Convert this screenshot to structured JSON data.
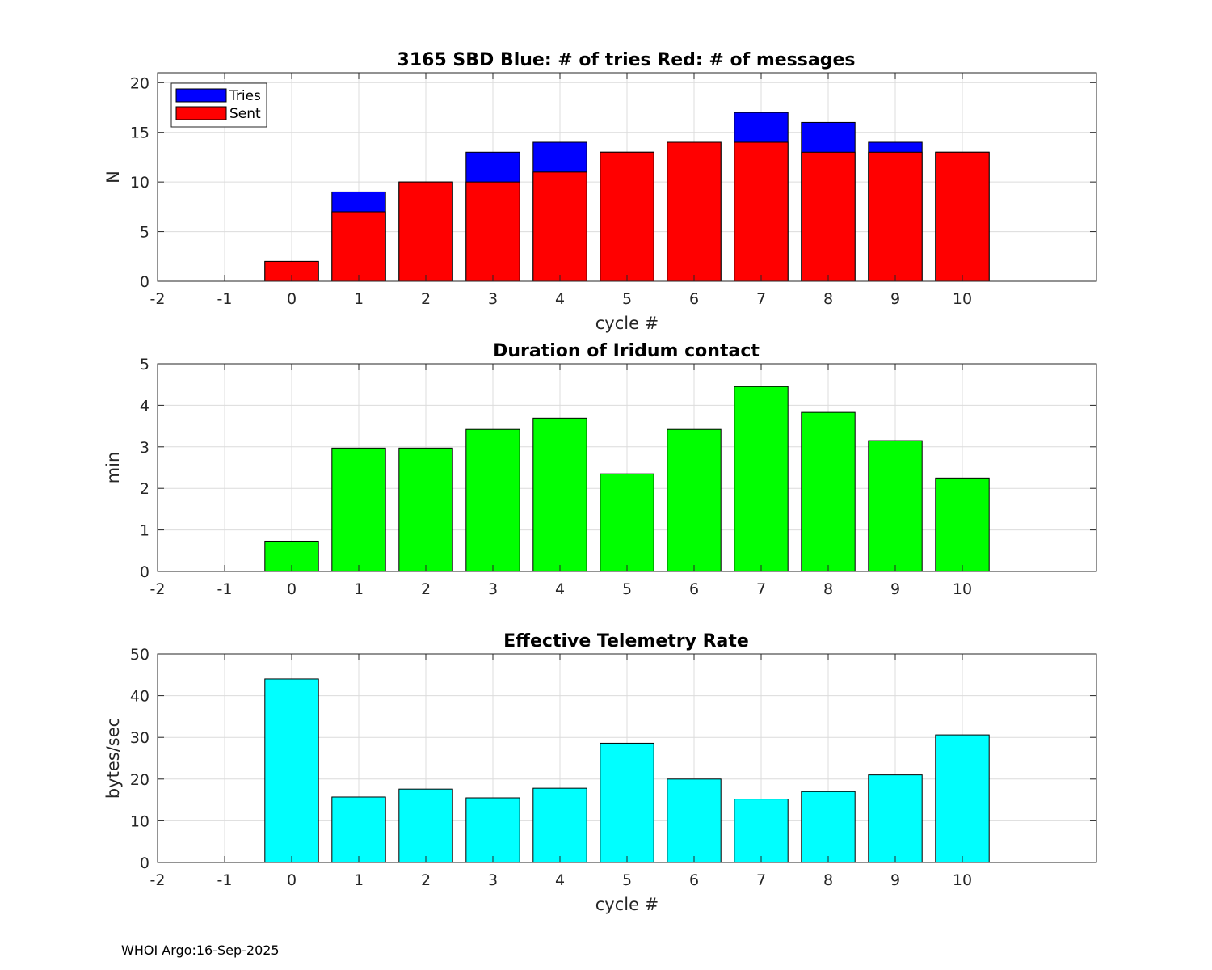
{
  "chart_data": [
    {
      "type": "bar",
      "title": "3165 SBD  Blue: # of tries   Red: # of messages",
      "xlabel": "cycle #",
      "ylabel": "N",
      "xlim": [
        -2,
        12
      ],
      "ylim": [
        0,
        21
      ],
      "yticks": [
        0,
        5,
        10,
        15,
        20
      ],
      "xticks": [
        -2,
        -1,
        0,
        1,
        2,
        3,
        4,
        5,
        6,
        7,
        8,
        9,
        10
      ],
      "grid": true,
      "legend": {
        "placement": "top-left",
        "entries": [
          "Tries",
          "Sent"
        ]
      },
      "categories": [
        0,
        1,
        2,
        3,
        4,
        5,
        6,
        7,
        8,
        9,
        10
      ],
      "series": [
        {
          "name": "Tries",
          "color": "#0000ff",
          "values": [
            2,
            9,
            10,
            13,
            14,
            13,
            14,
            17,
            16,
            14,
            13
          ]
        },
        {
          "name": "Sent",
          "color": "#ff0000",
          "values": [
            2,
            7,
            10,
            10,
            11,
            13,
            14,
            14,
            13,
            13,
            13
          ]
        }
      ]
    },
    {
      "type": "bar",
      "title": "Duration of Iridum contact",
      "xlabel": "",
      "ylabel": "min",
      "xlim": [
        -2,
        12
      ],
      "ylim": [
        0,
        5
      ],
      "yticks": [
        0,
        1,
        2,
        3,
        4,
        5
      ],
      "xticks": [
        -2,
        -1,
        0,
        1,
        2,
        3,
        4,
        5,
        6,
        7,
        8,
        9,
        10
      ],
      "grid": true,
      "categories": [
        0,
        1,
        2,
        3,
        4,
        5,
        6,
        7,
        8,
        9,
        10
      ],
      "series": [
        {
          "name": "Duration",
          "color": "#00ff00",
          "values": [
            0.73,
            2.97,
            2.97,
            3.42,
            3.69,
            2.35,
            3.42,
            4.45,
            3.83,
            3.15,
            2.25
          ]
        }
      ]
    },
    {
      "type": "bar",
      "title": "Effective Telemetry Rate",
      "xlabel": "cycle #",
      "ylabel": "bytes/sec",
      "xlim": [
        -2,
        12
      ],
      "ylim": [
        0,
        50
      ],
      "yticks": [
        0,
        10,
        20,
        30,
        40,
        50
      ],
      "xticks": [
        -2,
        -1,
        0,
        1,
        2,
        3,
        4,
        5,
        6,
        7,
        8,
        9,
        10
      ],
      "grid": true,
      "categories": [
        0,
        1,
        2,
        3,
        4,
        5,
        6,
        7,
        8,
        9,
        10
      ],
      "series": [
        {
          "name": "Rate",
          "color": "#00ffff",
          "values": [
            44,
            15.7,
            17.6,
            15.5,
            17.8,
            28.6,
            20,
            15.2,
            17,
            21,
            30.6
          ]
        }
      ]
    }
  ],
  "footer": "WHOI Argo:16-Sep-2025"
}
